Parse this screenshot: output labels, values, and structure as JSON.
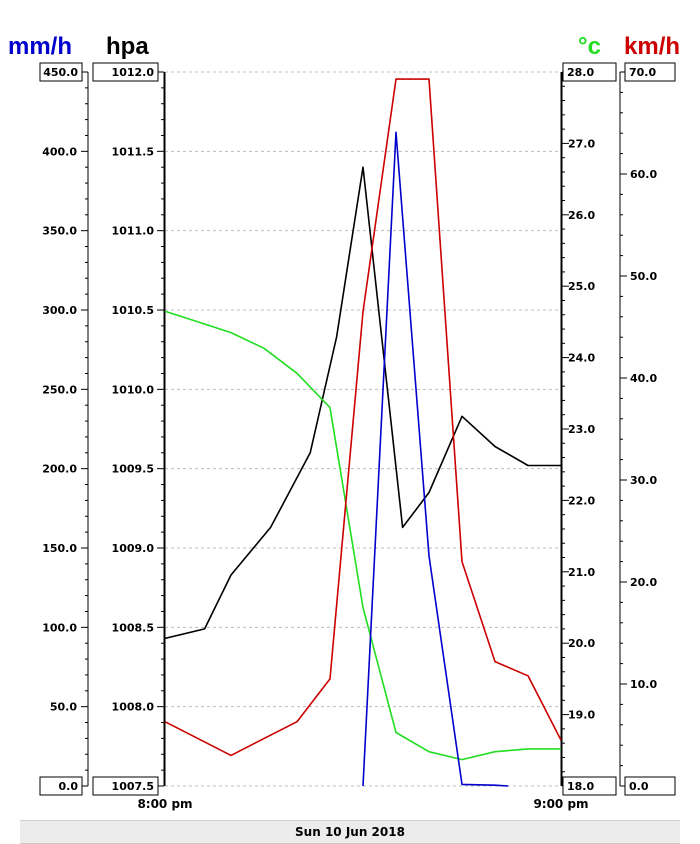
{
  "chart_data": {
    "type": "line",
    "x_axis": {
      "start_label": "8:00 pm",
      "end_label": "9:00 pm",
      "range_minutes": [
        0,
        60
      ]
    },
    "date_label": "Sun 10 Jun 2018",
    "axes": [
      {
        "id": "rain",
        "unit": "mm/h",
        "side": "left",
        "color": "#0000cc",
        "range": [
          0,
          450
        ],
        "ticks": [
          0,
          50,
          100,
          150,
          200,
          250,
          300,
          350,
          400,
          450
        ],
        "decimals": 1
      },
      {
        "id": "pressure",
        "unit": "hpa",
        "side": "left",
        "color": "#000000",
        "range": [
          1007.5,
          1012.0
        ],
        "ticks": [
          1007.5,
          1008.0,
          1008.5,
          1009.0,
          1009.5,
          1010.0,
          1010.5,
          1011.0,
          1011.5,
          1012.0
        ],
        "decimals": 1
      },
      {
        "id": "temperature",
        "unit": "°c",
        "side": "right",
        "color": "#22dd22",
        "range": [
          18.0,
          28.0
        ],
        "ticks": [
          18.0,
          19.0,
          20.0,
          21.0,
          22.0,
          23.0,
          24.0,
          25.0,
          26.0,
          27.0,
          28.0
        ],
        "decimals": 1
      },
      {
        "id": "wind",
        "unit": "km/h",
        "side": "right",
        "color": "#cc0000",
        "range": [
          0,
          70
        ],
        "ticks": [
          0,
          10,
          20,
          30,
          40,
          50,
          60,
          70
        ],
        "decimals": 1
      }
    ],
    "series": [
      {
        "axis": "pressure",
        "color": "#000000",
        "x": [
          0,
          6,
          10,
          16,
          22,
          26,
          30,
          36,
          40,
          45,
          50,
          55,
          60
        ],
        "y": [
          1008.43,
          1008.49,
          1008.83,
          1009.13,
          1009.6,
          1010.33,
          1011.4,
          1009.13,
          1009.35,
          1009.83,
          1009.64,
          1009.52,
          1009.52
        ]
      },
      {
        "axis": "temperature",
        "color": "#22dd22",
        "x": [
          0,
          5,
          10,
          15,
          20,
          25,
          30,
          35,
          40,
          45,
          50,
          55,
          60
        ],
        "y": [
          24.65,
          24.5,
          24.35,
          24.13,
          23.78,
          23.3,
          20.5,
          18.75,
          18.48,
          18.37,
          18.48,
          18.52,
          18.52
        ]
      },
      {
        "axis": "wind",
        "color": "#cc0000",
        "x": [
          0,
          10,
          20,
          25,
          30,
          35,
          40,
          45,
          50,
          55,
          60
        ],
        "y": [
          6.3,
          3.0,
          6.3,
          10.5,
          46.5,
          69.3,
          69.3,
          22.0,
          12.2,
          10.8,
          4.5
        ]
      },
      {
        "axis": "rain",
        "color": "#0000cc",
        "x": [
          30,
          35,
          40,
          45,
          50,
          52
        ],
        "y": [
          0,
          412,
          145,
          1,
          0.5,
          0
        ]
      }
    ]
  }
}
